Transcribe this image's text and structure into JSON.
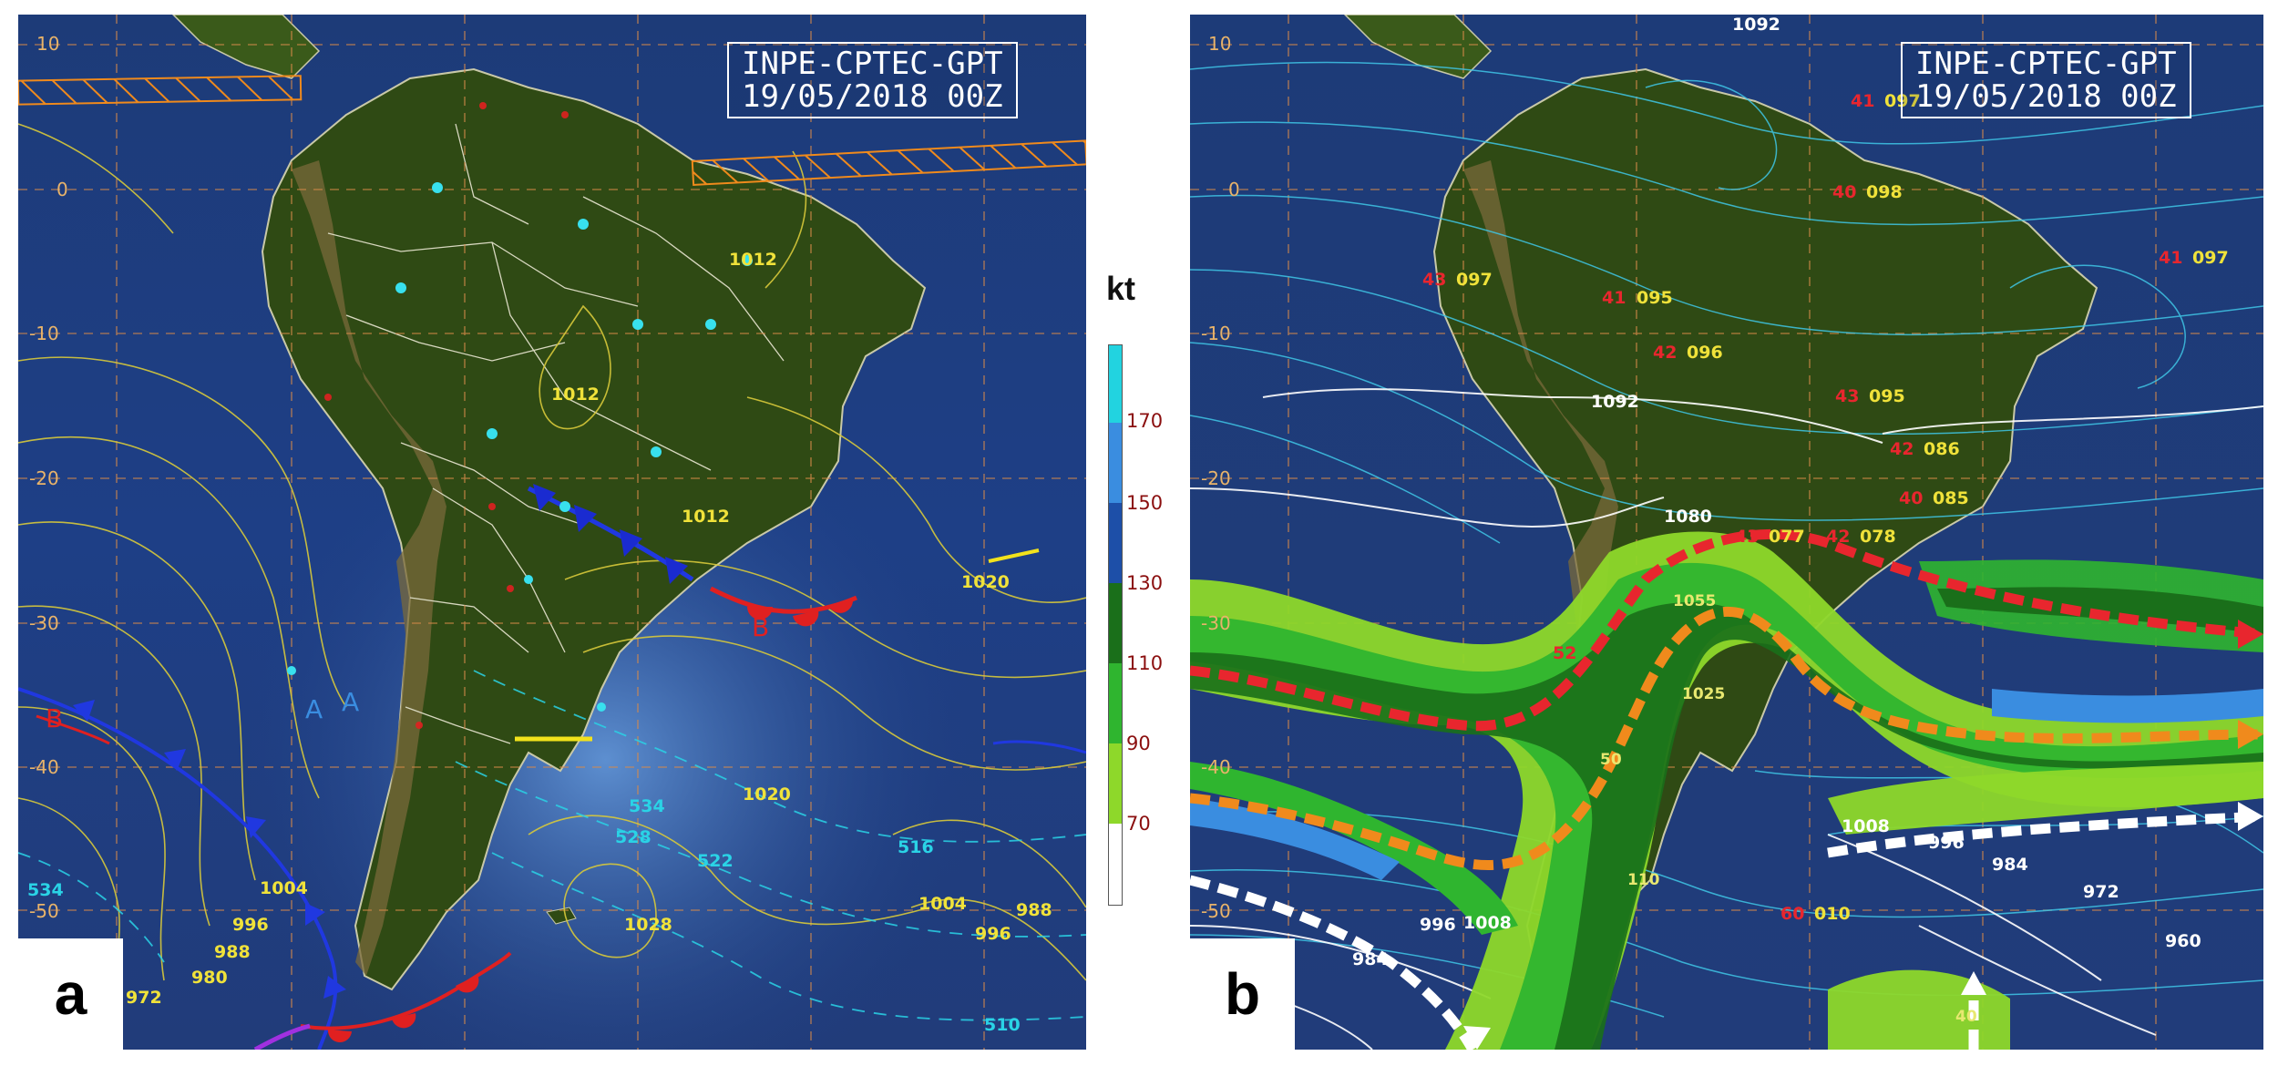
{
  "panels": [
    {
      "label": "a",
      "stamp_line1": "INPE-CPTEC-GPT",
      "stamp_line2": "19/05/2018 00Z"
    },
    {
      "label": "b",
      "stamp_line1": "INPE-CPTEC-GPT",
      "stamp_line2": "19/05/2018 00Z"
    }
  ],
  "lat_labels": [
    "10",
    "0",
    "-10",
    "-20",
    "-30",
    "-40",
    "-50"
  ],
  "panel_a": {
    "isobars": [
      "1012",
      "1012",
      "1012",
      "1020",
      "1020",
      "1028",
      "1004",
      "1004",
      "996",
      "996",
      "988",
      "988",
      "980",
      "972",
      "534",
      "528",
      "522",
      "516",
      "510",
      "534"
    ],
    "pressure_letters": [
      "A",
      "A",
      "B",
      "B"
    ]
  },
  "panel_b": {
    "labels_white": [
      "1092",
      "1092",
      "1080",
      "1008",
      "996",
      "984",
      "984",
      "972",
      "960",
      "1008",
      "996"
    ],
    "labels_yellow": [
      "097",
      "098",
      "097",
      "097",
      "095",
      "096",
      "095",
      "086",
      "085",
      "077",
      "078",
      "010"
    ],
    "labels_red": [
      "41",
      "40",
      "41",
      "43",
      "41",
      "42",
      "43",
      "42",
      "40",
      "43",
      "42",
      "52",
      "60"
    ],
    "labels_jet": [
      "1055",
      "1025",
      "110",
      "50",
      "40"
    ]
  },
  "legend": {
    "unit": "kt",
    "ticks": [
      "170",
      "150",
      "130",
      "110",
      "90",
      "70"
    ],
    "colors": [
      "#22d3e0",
      "#3a8de0",
      "#1d4fa8",
      "#1a6f1a",
      "#2fb52f",
      "#8ed82a",
      "#ffffff"
    ]
  }
}
